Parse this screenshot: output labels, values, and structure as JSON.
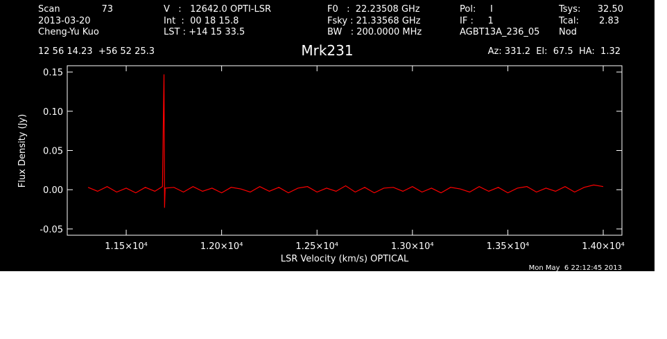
{
  "chart_data": {
    "type": "line",
    "title": "Mrk231",
    "header": [
      "Scan",
      "73",
      "2013-03-20",
      "Cheng-Yu Kuo",
      "V   :   12642.0 OPTI-LSR",
      "Int  :  00 18 15.8",
      "LST : +14 15 33.5",
      "F0   :  22.23508 GHz",
      "Fsky : 21.33568 GHz",
      "BW   : 200.0000 MHz",
      "Pol:     I",
      "IF :     1",
      "AGBT13A_236_05",
      "Tsys:",
      "32.50",
      "Tcal:",
      "2.83",
      "Nod",
      "12 56 14.23  +56 52 25.3",
      "Az: 331.2  El:  67.5  HA:  1.32"
    ],
    "xlabel": "LSR Velocity (km/s) OPTICAL",
    "ylabel": "Flux Density (Jy)",
    "footer": "Mon May  6 22:12:45 2013",
    "xlim": [
      11191,
      14098
    ],
    "ylim": [
      -0.058,
      0.158
    ],
    "xticks": [
      {
        "value": 11500,
        "label": "1.15×10⁴"
      },
      {
        "value": 12000,
        "label": "1.20×10⁴"
      },
      {
        "value": 12500,
        "label": "1.25×10⁴"
      },
      {
        "value": 13000,
        "label": "1.30×10⁴"
      },
      {
        "value": 13500,
        "label": "1.35×10⁴"
      },
      {
        "value": 14000,
        "label": "1.40×10⁴"
      }
    ],
    "yticks": [
      -0.05,
      {
        "value": 0,
        "label": "0.00"
      },
      0.05,
      {
        "value": 0.1,
        "label": "0.10"
      },
      0.15
    ],
    "series": [
      {
        "name": "Mrk231",
        "color": "#ff0000",
        "x": [
          11300,
          11350,
          11400,
          11450,
          11500,
          11550,
          11600,
          11650,
          11690,
          11695,
          11698,
          11701,
          11704,
          11750,
          11800,
          11850,
          11900,
          11950,
          12000,
          12050,
          12100,
          12150,
          12200,
          12250,
          12300,
          12350,
          12400,
          12450,
          12500,
          12550,
          12600,
          12650,
          12700,
          12750,
          12800,
          12850,
          12900,
          12950,
          13000,
          13050,
          13100,
          13150,
          13200,
          13250,
          13300,
          13350,
          13400,
          13450,
          13500,
          13550,
          13600,
          13650,
          13700,
          13750,
          13800,
          13850,
          13900,
          13950,
          14000
        ],
        "values": [
          0.003,
          -0.002,
          0.004,
          -0.003,
          0.002,
          -0.004,
          0.003,
          -0.002,
          0.004,
          0.095,
          0.147,
          -0.023,
          0.002,
          0.003,
          -0.003,
          0.004,
          -0.002,
          0.002,
          -0.004,
          0.003,
          0.001,
          -0.003,
          0.004,
          -0.002,
          0.003,
          -0.004,
          0.002,
          0.004,
          -0.003,
          0.002,
          -0.002,
          0.005,
          -0.003,
          0.003,
          -0.004,
          0.002,
          0.003,
          -0.002,
          0.004,
          -0.003,
          0.002,
          -0.004,
          0.003,
          0.001,
          -0.003,
          0.004,
          -0.002,
          0.003,
          -0.004,
          0.002,
          0.004,
          -0.003,
          0.002,
          -0.002,
          0.004,
          -0.003,
          0.003,
          0.006,
          0.004
        ]
      }
    ]
  }
}
